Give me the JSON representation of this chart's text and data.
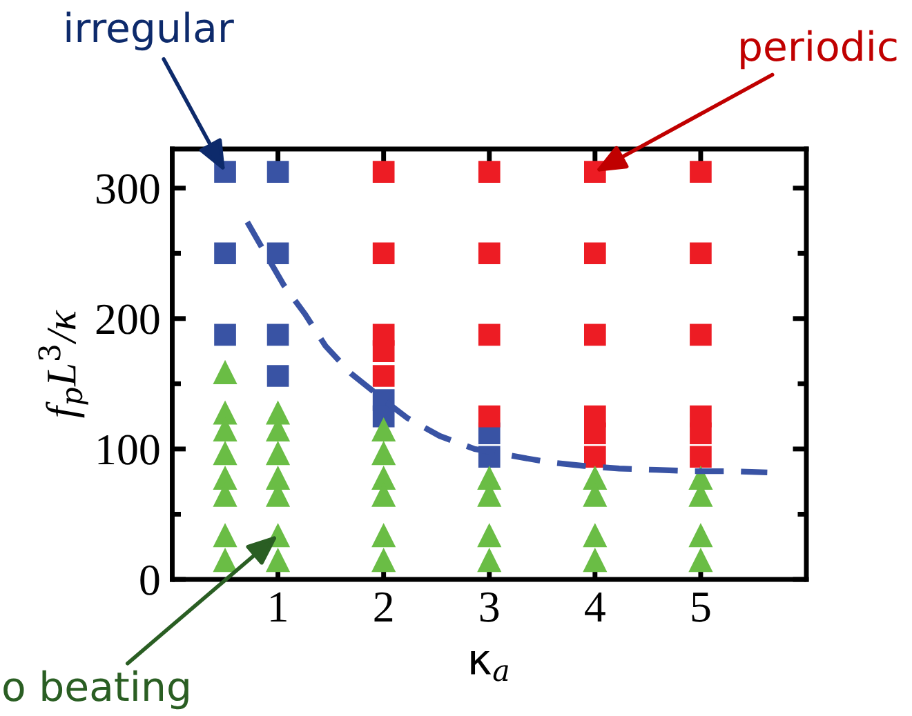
{
  "chart_data": {
    "type": "scatter",
    "xlabel": "κ$_{a}$",
    "ylabel": "f$_{p}$L$^{3}$/κ",
    "xlim": [
      0,
      6
    ],
    "ylim": [
      0,
      330
    ],
    "xticks": [
      1,
      2,
      3,
      4,
      5
    ],
    "yticks": [
      0,
      {
        "value": 50,
        "label": null
      },
      100,
      {
        "value": 150,
        "label": null
      },
      200,
      {
        "value": 250,
        "label": null
      },
      300
    ],
    "grid": false,
    "legend": false,
    "series": [
      {
        "marker": "square",
        "color": "#3953a4",
        "x": [
          0.5,
          0.5,
          0.5,
          1,
          1,
          1,
          1,
          2,
          2,
          3,
          3
        ],
        "values": [
          312.5,
          250,
          187.5,
          312.5,
          250,
          187.5,
          156,
          137.5,
          125,
          112,
          94
        ]
      },
      {
        "marker": "square",
        "color": "#ed1c24",
        "x": [
          2,
          2,
          2,
          2,
          2,
          3,
          3,
          3,
          3,
          4,
          4,
          4,
          4,
          4,
          4,
          5,
          5,
          5,
          5,
          5,
          5
        ],
        "values": [
          312.5,
          250,
          187.5,
          175,
          156,
          312.5,
          250,
          187.5,
          125,
          312.5,
          250,
          187.5,
          125,
          112,
          94,
          312.5,
          250,
          187.5,
          125,
          112,
          94
        ]
      },
      {
        "marker": "triangle",
        "color": "#6abd45",
        "x": [
          0.5,
          0.5,
          0.5,
          0.5,
          0.5,
          0.5,
          0.5,
          0.5,
          1,
          1,
          1,
          1,
          1,
          1,
          1,
          2,
          2,
          2,
          2,
          2,
          2,
          3,
          3,
          3,
          3,
          4,
          4,
          4,
          4,
          5,
          5,
          5,
          5
        ],
        "values": [
          159,
          128,
          115,
          97,
          78,
          65,
          34,
          15,
          128,
          115,
          97,
          78,
          65,
          34,
          15,
          115,
          97,
          78,
          65,
          34,
          15,
          78,
          65,
          34,
          15,
          78,
          65,
          34,
          15,
          78,
          65,
          34,
          15
        ]
      },
      {
        "type": "line",
        "line_style": "dashed",
        "marker": "none",
        "color": "#3953a4",
        "x": [
          0.71,
          0.88,
          1.06,
          1.26,
          1.45,
          1.69,
          2.09,
          2.22,
          2.53,
          2.86,
          3.2,
          3.55,
          3.9,
          4.23,
          4.58,
          4.93,
          5.27,
          5.63
        ],
        "values": [
          274,
          250,
          225,
          203,
          179,
          158,
          132,
          124,
          110,
          100,
          95,
          90,
          87,
          85,
          84,
          83,
          83,
          82
        ]
      }
    ],
    "annotations": [
      {
        "text": "irregular",
        "x": 0.5,
        "y": 312.5
      },
      {
        "text": "periodic",
        "x": 4,
        "y": 312.5
      },
      {
        "text": "o beating",
        "x": 1,
        "y": 34
      }
    ]
  }
}
